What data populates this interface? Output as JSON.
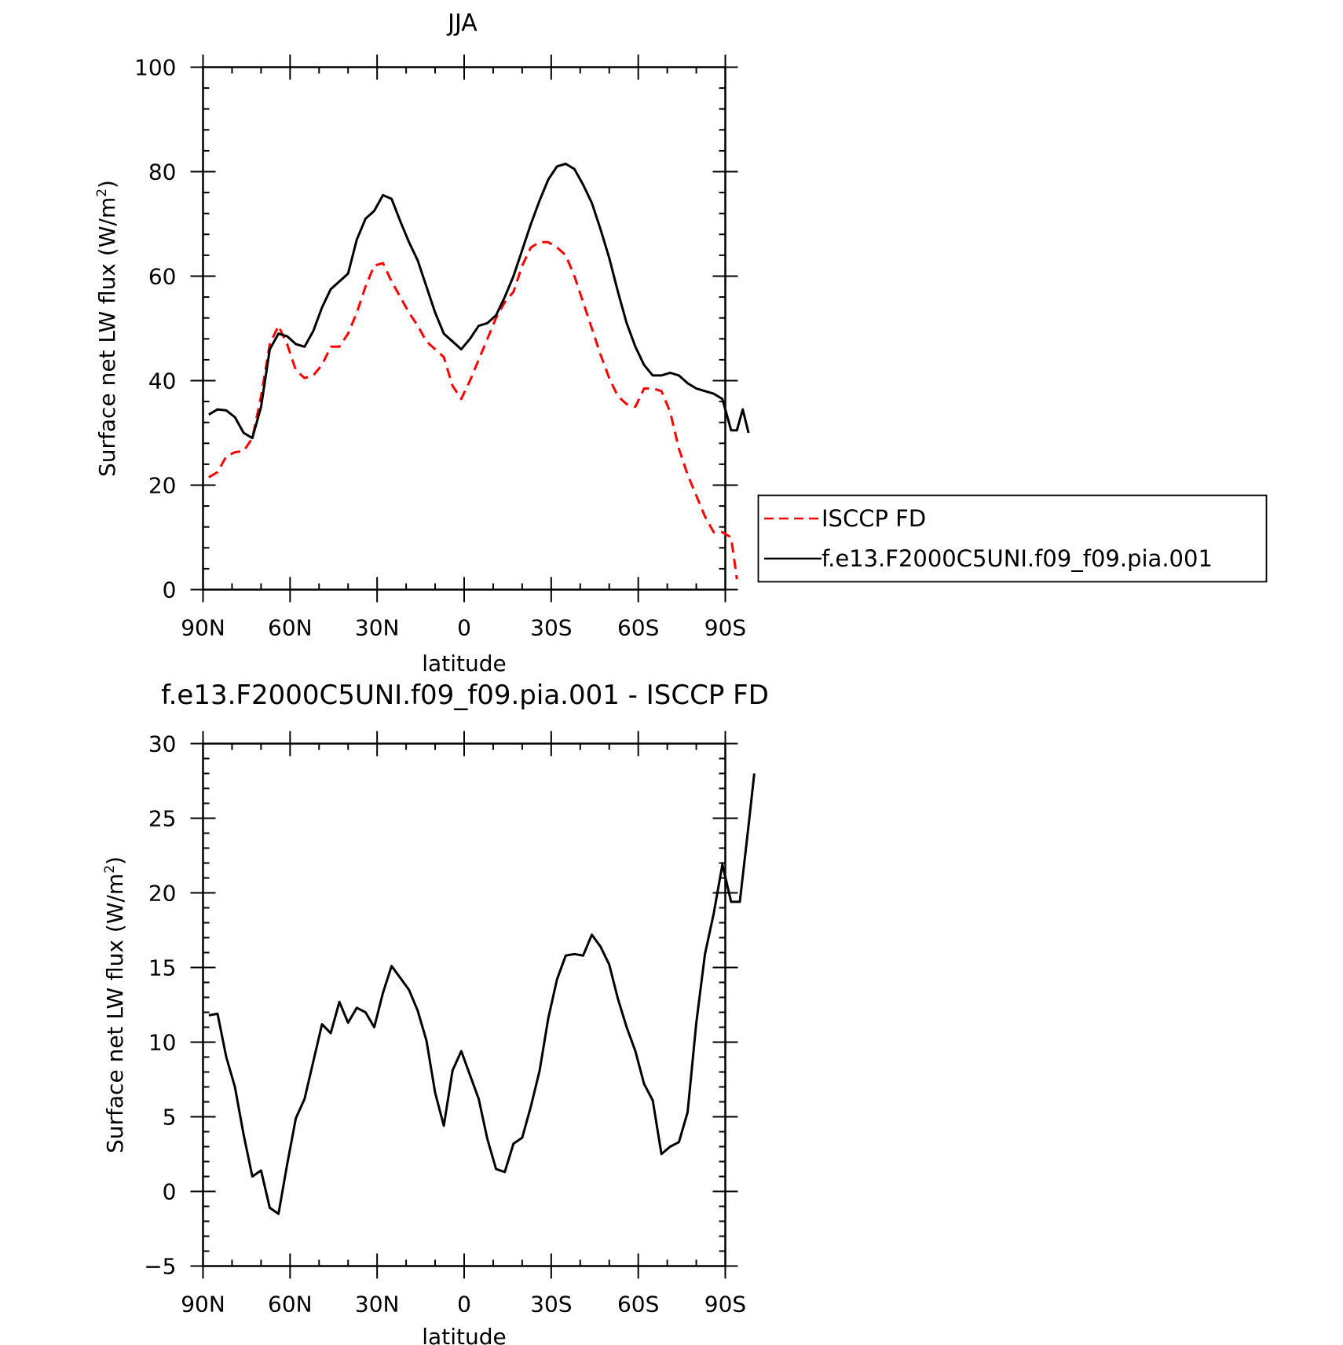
{
  "chart_data": [
    {
      "type": "line",
      "title": "JJA",
      "xlabel": "latitude",
      "ylabel": "Surface net LW flux (W/m",
      "ylabel_sup": "2",
      "ylabel_close": ")",
      "xlim": [
        90,
        -90
      ],
      "ylim": [
        0,
        100
      ],
      "x_ticks": [
        {
          "value": 90,
          "label": "90N"
        },
        {
          "value": 60,
          "label": "60N"
        },
        {
          "value": 30,
          "label": "30N"
        },
        {
          "value": 0,
          "label": "0"
        },
        {
          "value": -30,
          "label": "30S"
        },
        {
          "value": -60,
          "label": "60S"
        },
        {
          "value": -90,
          "label": "90S"
        }
      ],
      "y_ticks": [
        0,
        20,
        40,
        60,
        80,
        100
      ],
      "legend_position": "right",
      "series": [
        {
          "name": "ISCCP FD",
          "color": "#ff0000",
          "dash": "dashed",
          "points": [
            [
              88,
              21.5
            ],
            [
              85,
              22.5
            ],
            [
              82,
              25.5
            ],
            [
              79,
              26.3
            ],
            [
              76,
              26.5
            ],
            [
              73,
              29
            ],
            [
              70,
              37
            ],
            [
              67,
              47
            ],
            [
              64,
              50.5
            ],
            [
              61,
              47
            ],
            [
              58,
              42
            ],
            [
              55,
              40.5
            ],
            [
              52,
              41
            ],
            [
              49,
              43
            ],
            [
              46,
              46.5
            ],
            [
              43,
              46.5
            ],
            [
              40,
              49
            ],
            [
              37,
              53
            ],
            [
              34,
              58
            ],
            [
              31,
              62
            ],
            [
              28,
              62.5
            ],
            [
              25,
              59
            ],
            [
              22,
              56
            ],
            [
              19,
              53
            ],
            [
              16,
              50.5
            ],
            [
              13,
              47.5
            ],
            [
              10,
              46
            ],
            [
              7,
              44.5
            ],
            [
              4,
              39
            ],
            [
              1,
              36.5
            ],
            [
              -2,
              40
            ],
            [
              -5,
              44
            ],
            [
              -8,
              48
            ],
            [
              -11,
              52
            ],
            [
              -14,
              55
            ],
            [
              -17,
              57
            ],
            [
              -20,
              62
            ],
            [
              -23,
              65.5
            ],
            [
              -26,
              66.5
            ],
            [
              -29,
              66.5
            ],
            [
              -32,
              65.5
            ],
            [
              -35,
              64
            ],
            [
              -38,
              60
            ],
            [
              -41,
              55
            ],
            [
              -44,
              50
            ],
            [
              -47,
              45
            ],
            [
              -50,
              40.5
            ],
            [
              -53,
              37
            ],
            [
              -56,
              35.5
            ],
            [
              -59,
              35
            ],
            [
              -62,
              38.5
            ],
            [
              -65,
              38.5
            ],
            [
              -68,
              38
            ],
            [
              -71,
              34
            ],
            [
              -74,
              27
            ],
            [
              -77,
              22
            ],
            [
              -80,
              18
            ],
            [
              -83,
              14
            ],
            [
              -86,
              11
            ],
            [
              -89,
              11
            ],
            [
              -92,
              10
            ],
            [
              -94,
              2
            ]
          ]
        },
        {
          "name": "f.e13.F2000C5UNI.f09_f09.pia.001",
          "color": "#000000",
          "dash": "solid",
          "points": [
            [
              88,
              33.5
            ],
            [
              85,
              34.5
            ],
            [
              82,
              34.3
            ],
            [
              79,
              33
            ],
            [
              76,
              30
            ],
            [
              73,
              29
            ],
            [
              70,
              35
            ],
            [
              67,
              46
            ],
            [
              64,
              49
            ],
            [
              61,
              48.5
            ],
            [
              58,
              47
            ],
            [
              55,
              46.5
            ],
            [
              52,
              49.5
            ],
            [
              49,
              54
            ],
            [
              46,
              57.5
            ],
            [
              43,
              59
            ],
            [
              40,
              60.5
            ],
            [
              37,
              67
            ],
            [
              34,
              71
            ],
            [
              31,
              72.5
            ],
            [
              28,
              75.5
            ],
            [
              25,
              74.8
            ],
            [
              22,
              70.5
            ],
            [
              19,
              66.5
            ],
            [
              16,
              63
            ],
            [
              13,
              58
            ],
            [
              10,
              53
            ],
            [
              7,
              49
            ],
            [
              4,
              47.5
            ],
            [
              1,
              46
            ],
            [
              -2,
              48
            ],
            [
              -5,
              50.5
            ],
            [
              -8,
              51
            ],
            [
              -11,
              52.5
            ],
            [
              -14,
              56
            ],
            [
              -17,
              60
            ],
            [
              -20,
              65
            ],
            [
              -23,
              70
            ],
            [
              -26,
              74.5
            ],
            [
              -29,
              78.5
            ],
            [
              -32,
              81
            ],
            [
              -35,
              81.5
            ],
            [
              -38,
              80.5
            ],
            [
              -41,
              77.5
            ],
            [
              -44,
              74
            ],
            [
              -47,
              69
            ],
            [
              -50,
              63.5
            ],
            [
              -53,
              57
            ],
            [
              -56,
              51
            ],
            [
              -59,
              46.5
            ],
            [
              -62,
              43
            ],
            [
              -65,
              41
            ],
            [
              -68,
              41
            ],
            [
              -71,
              41.5
            ],
            [
              -74,
              41
            ],
            [
              -77,
              39.5
            ],
            [
              -80,
              38.5
            ],
            [
              -83,
              38
            ],
            [
              -86,
              37.5
            ],
            [
              -89,
              36.5
            ],
            [
              -92,
              30.5
            ],
            [
              -94,
              30.5
            ],
            [
              -96,
              34.5
            ],
            [
              -98,
              30
            ]
          ]
        }
      ]
    },
    {
      "type": "line",
      "title": "f.e13.F2000C5UNI.f09_f09.pia.001 - ISCCP FD",
      "xlabel": "latitude",
      "ylabel": "Surface net LW flux (W/m",
      "ylabel_sup": "2",
      "ylabel_close": ")",
      "xlim": [
        90,
        -90
      ],
      "ylim": [
        -5,
        30
      ],
      "x_ticks": [
        {
          "value": 90,
          "label": "90N"
        },
        {
          "value": 60,
          "label": "60N"
        },
        {
          "value": 30,
          "label": "30N"
        },
        {
          "value": 0,
          "label": "0"
        },
        {
          "value": -30,
          "label": "30S"
        },
        {
          "value": -60,
          "label": "60S"
        },
        {
          "value": -90,
          "label": "90S"
        }
      ],
      "y_ticks": [
        -5,
        0,
        5,
        10,
        15,
        20,
        25,
        30
      ],
      "series": [
        {
          "color": "#000000",
          "dash": "solid",
          "points": [
            [
              88,
              11.8
            ],
            [
              85,
              11.9
            ],
            [
              82,
              9
            ],
            [
              79,
              7
            ],
            [
              76,
              3.8
            ],
            [
              73,
              1
            ],
            [
              70,
              1.4
            ],
            [
              67,
              -1.1
            ],
            [
              64,
              -1.5
            ],
            [
              61,
              1.8
            ],
            [
              58,
              4.9
            ],
            [
              55,
              6.2
            ],
            [
              52,
              8.7
            ],
            [
              49,
              11.2
            ],
            [
              46,
              10.6
            ],
            [
              43,
              12.7
            ],
            [
              40,
              11.3
            ],
            [
              37,
              12.3
            ],
            [
              34,
              12
            ],
            [
              31,
              11
            ],
            [
              28,
              13.3
            ],
            [
              25,
              15.1
            ],
            [
              22,
              14.3
            ],
            [
              19,
              13.5
            ],
            [
              16,
              12.1
            ],
            [
              13,
              10.1
            ],
            [
              10,
              6.6
            ],
            [
              7,
              4.4
            ],
            [
              4,
              8.1
            ],
            [
              1,
              9.4
            ],
            [
              -2,
              7.8
            ],
            [
              -5,
              6.2
            ],
            [
              -8,
              3.5
            ],
            [
              -11,
              1.5
            ],
            [
              -14,
              1.3
            ],
            [
              -17,
              3.2
            ],
            [
              -20,
              3.6
            ],
            [
              -23,
              5.7
            ],
            [
              -26,
              8.1
            ],
            [
              -29,
              11.6
            ],
            [
              -32,
              14.2
            ],
            [
              -35,
              15.8
            ],
            [
              -38,
              15.9
            ],
            [
              -41,
              15.8
            ],
            [
              -44,
              17.2
            ],
            [
              -47,
              16.4
            ],
            [
              -50,
              15.2
            ],
            [
              -53,
              12.9
            ],
            [
              -56,
              11
            ],
            [
              -59,
              9.4
            ],
            [
              -62,
              7.2
            ],
            [
              -65,
              6.1
            ],
            [
              -68,
              2.5
            ],
            [
              -71,
              3
            ],
            [
              -74,
              3.3
            ],
            [
              -77,
              5.3
            ],
            [
              -80,
              11.3
            ],
            [
              -83,
              15.9
            ],
            [
              -86,
              18.6
            ],
            [
              -89,
              21.9
            ],
            [
              -92,
              19.4
            ],
            [
              -95,
              19.4
            ],
            [
              -98,
              24.5
            ],
            [
              -100,
              28
            ]
          ]
        }
      ]
    }
  ]
}
